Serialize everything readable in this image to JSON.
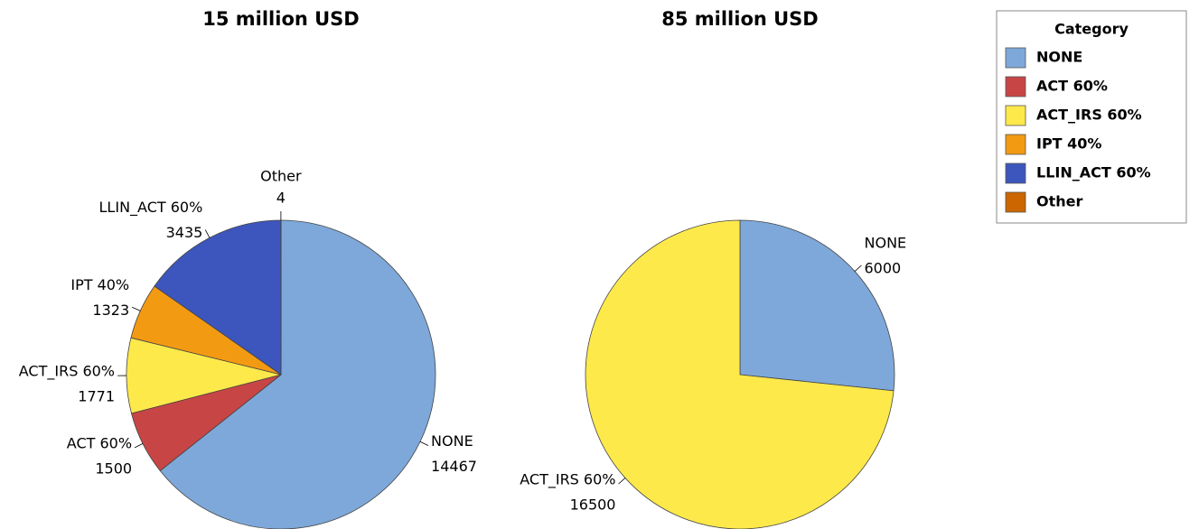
{
  "chart_data": [
    {
      "type": "pie",
      "title": "15 million USD",
      "categories": [
        "NONE",
        "ACT 60%",
        "ACT_IRS 60%",
        "IPT 40%",
        "LLIN_ACT 60%",
        "Other"
      ],
      "values": [
        14467,
        1500,
        1771,
        1323,
        3435,
        4
      ],
      "colors": [
        "#7ea8d9",
        "#c84545",
        "#fee94b",
        "#f39a13",
        "#3d56bd",
        "#cc6600"
      ]
    },
    {
      "type": "pie",
      "title": "85 million USD",
      "categories": [
        "NONE",
        "ACT_IRS 60%"
      ],
      "values": [
        6000,
        16500
      ],
      "colors": [
        "#7ea8d9",
        "#fee94b"
      ]
    }
  ],
  "legend": {
    "title": "Category",
    "items": [
      {
        "name": "NONE",
        "color": "#7ea8d9"
      },
      {
        "name": "ACT 60%",
        "color": "#c84545"
      },
      {
        "name": "ACT_IRS 60%",
        "color": "#fee94b"
      },
      {
        "name": "IPT 40%",
        "color": "#f39a13"
      },
      {
        "name": "LLIN_ACT 60%",
        "color": "#3d56bd"
      },
      {
        "name": "Other",
        "color": "#cc6600"
      }
    ]
  }
}
